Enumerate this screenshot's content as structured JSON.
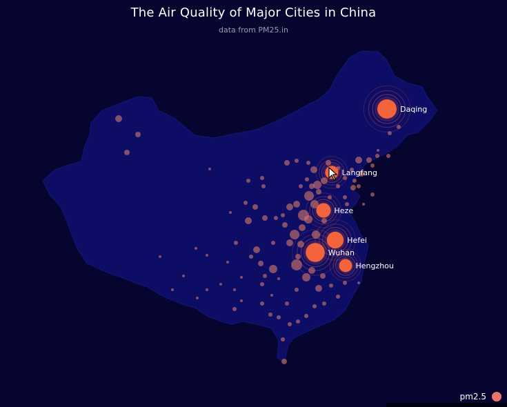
{
  "title": "The Air Quality of Major Cities in China",
  "subtitle": "data from PM25.in",
  "legend": {
    "label": "pm2.5",
    "color": "#e8776a"
  },
  "colors": {
    "background": "#050530",
    "land": "#0d0d66",
    "top_city": "#f4643c",
    "city": "#d77a6a"
  },
  "top_cities": [
    {
      "name": "Daqing",
      "pm25": 279
    },
    {
      "name": "Langfang",
      "pm25": 157
    },
    {
      "name": "Heze",
      "pm25": 182
    },
    {
      "name": "Hefei",
      "pm25": 229
    },
    {
      "name": "Wuhan",
      "pm25": 273
    },
    {
      "name": "Hengzhou",
      "pm25": 152
    }
  ]
}
